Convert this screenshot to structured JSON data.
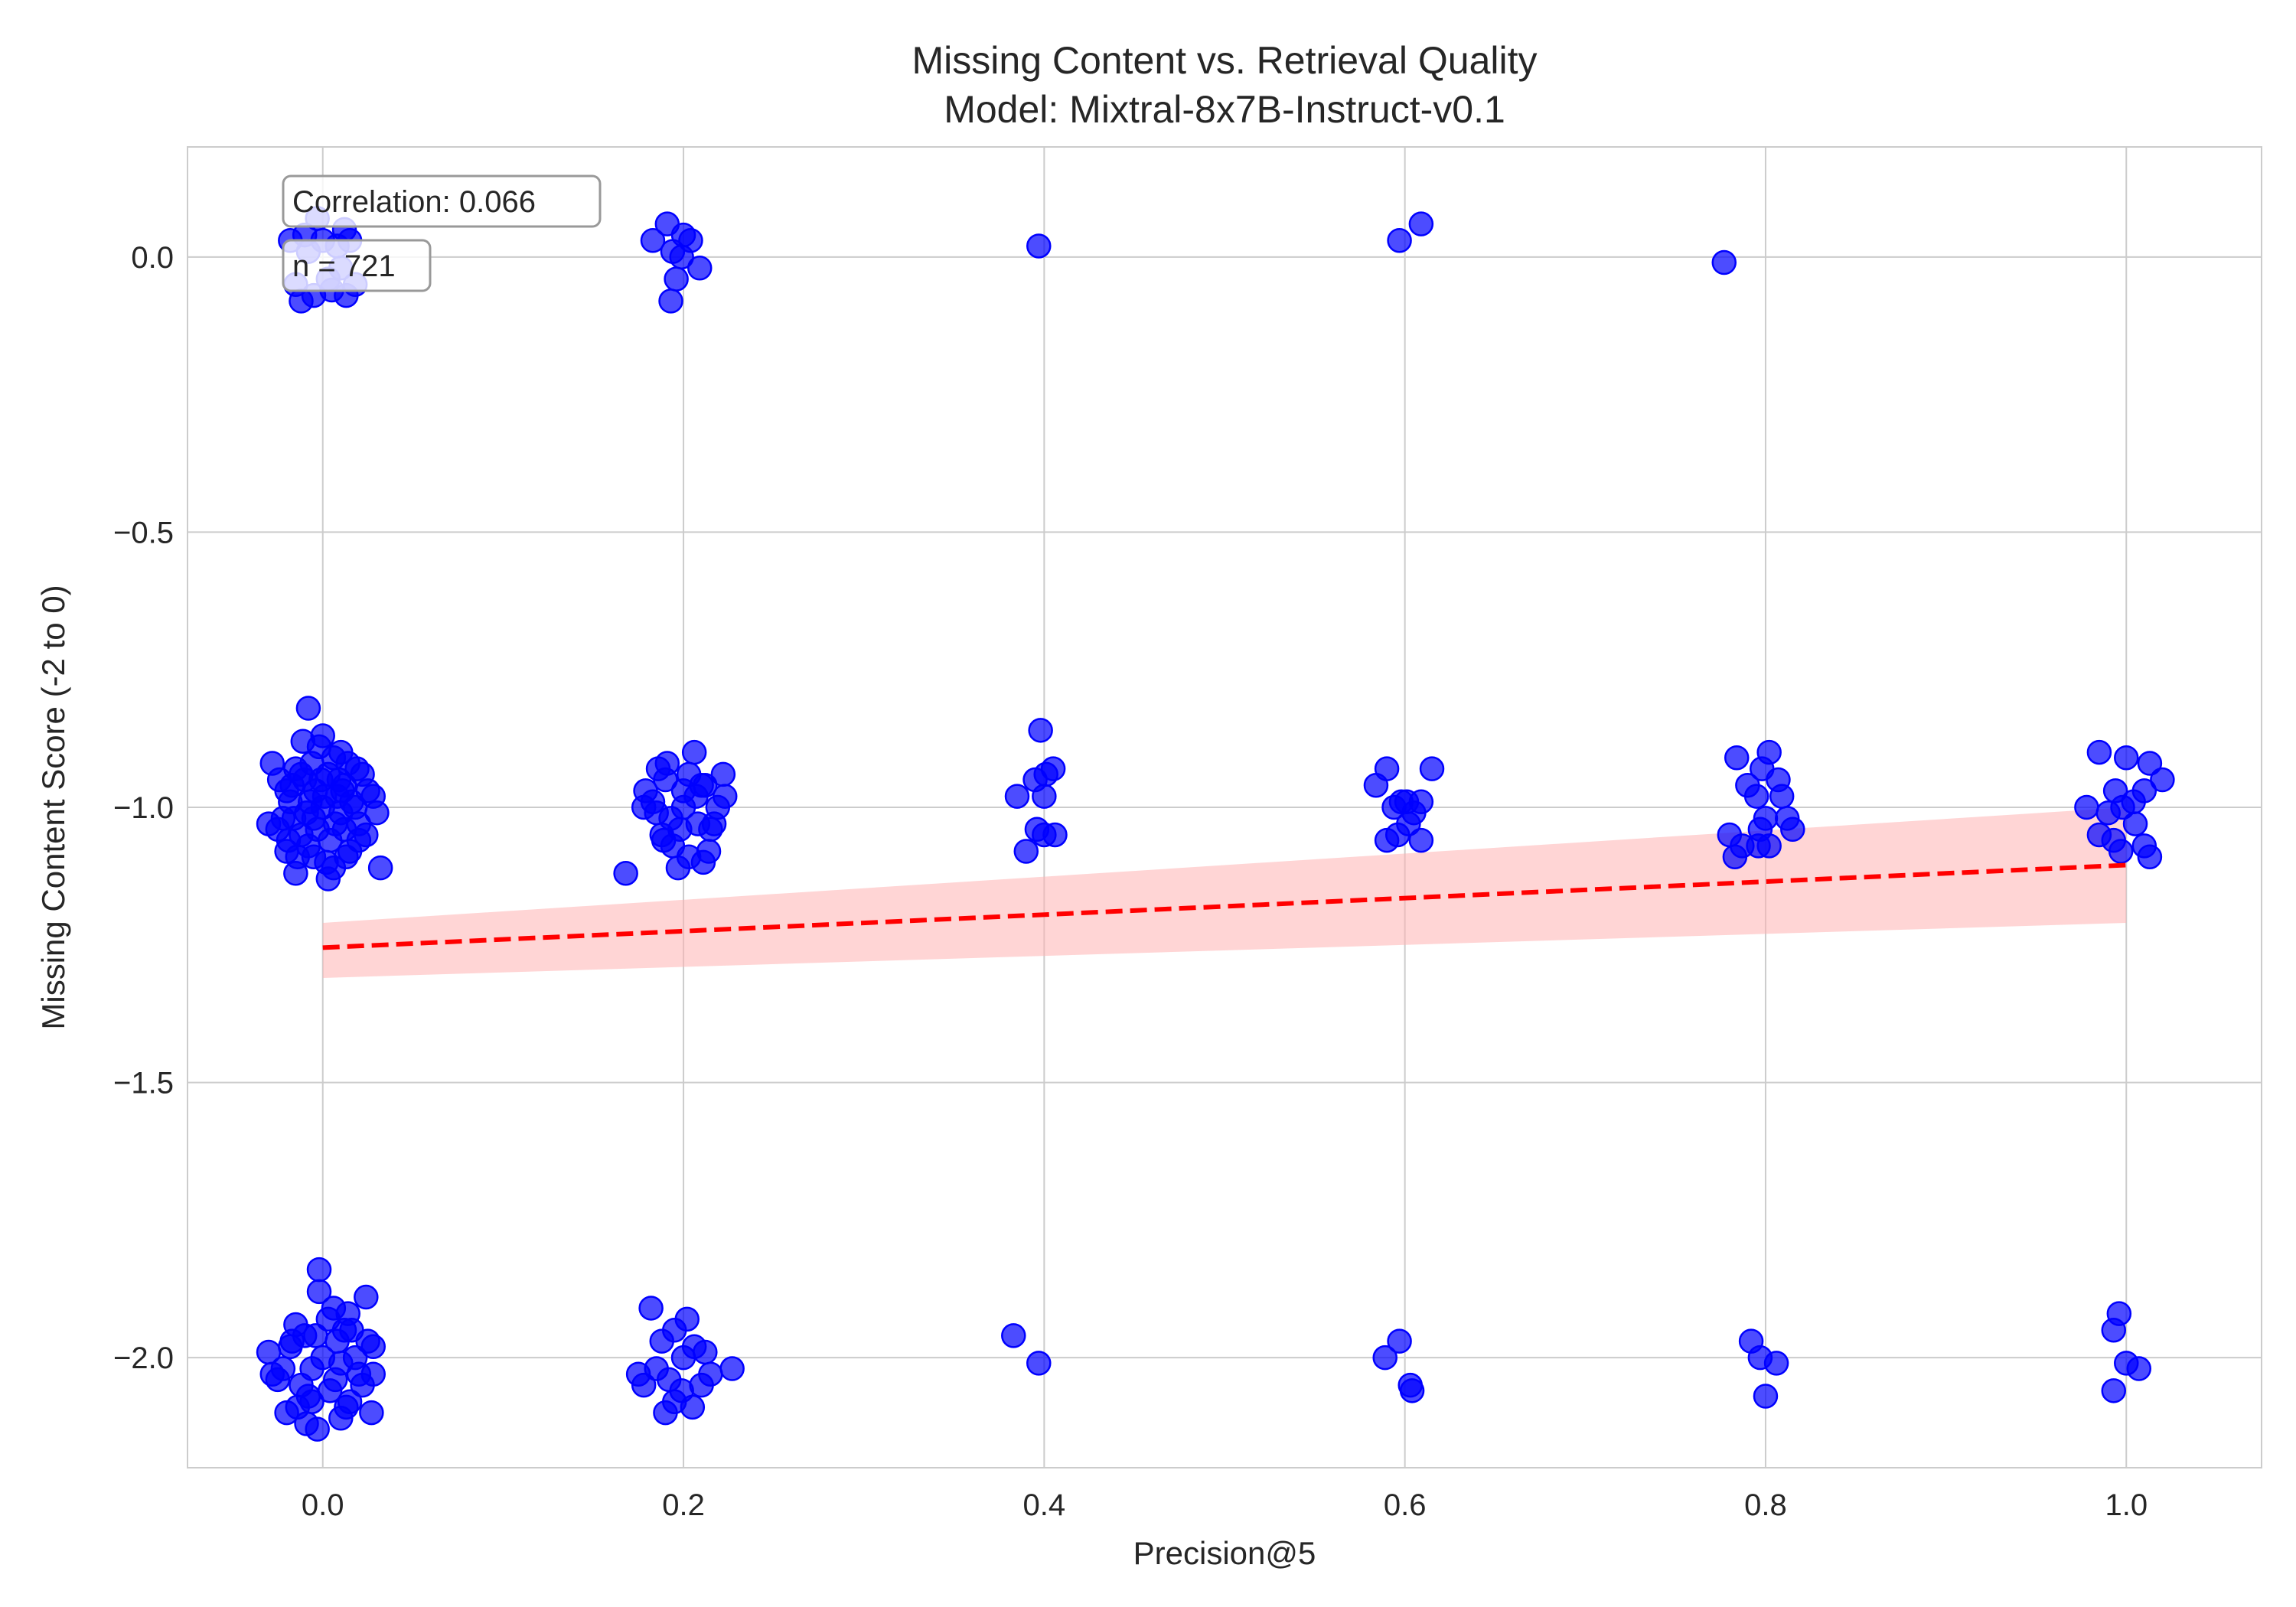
{
  "chart_data": {
    "type": "scatter",
    "title": "Missing Content vs. Retrieval Quality",
    "subtitle": "Model: Mixtral-8x7B-Instruct-v0.1",
    "xlabel": "Precision@5",
    "ylabel": "Missing Content Score (-2 to 0)",
    "xlim": [
      -0.075,
      1.075
    ],
    "ylim": [
      -2.2,
      0.2
    ],
    "xticks": [
      0.0,
      0.2,
      0.4,
      0.6,
      0.8,
      1.0
    ],
    "xtick_labels": [
      "0.0",
      "0.2",
      "0.4",
      "0.6",
      "0.8",
      "1.0"
    ],
    "yticks": [
      0.0,
      -0.5,
      -1.0,
      -1.5,
      -2.0
    ],
    "ytick_labels": [
      "0.0",
      "−0.5",
      "−1.0",
      "−1.5",
      "−2.0"
    ],
    "grid": true,
    "annotations": [
      {
        "text": "Correlation: 0.066"
      },
      {
        "text": "n = 721"
      }
    ],
    "colors": {
      "points": "#0000ff",
      "trend": "#ff0000",
      "band": "#ffb3b3",
      "grid": "#cccccc",
      "spine": "#cccccc",
      "text": "#262626"
    },
    "trend_line": {
      "x": [
        0.0,
        1.0
      ],
      "y": [
        -1.255,
        -1.105
      ],
      "style": "dashed"
    },
    "confidence_band": {
      "x": [
        0.0,
        1.0
      ],
      "lower": [
        -1.31,
        -1.21
      ],
      "upper": [
        -1.21,
        -1.0
      ]
    },
    "series": [
      {
        "points": [
          [
            0.0,
            -1.0
          ],
          [
            -0.005,
            -1.02
          ],
          [
            0.008,
            -0.98
          ],
          [
            -0.012,
            -1.05
          ],
          [
            0.012,
            -0.96
          ],
          [
            -0.018,
            -0.99
          ],
          [
            0.02,
            -1.03
          ],
          [
            0.003,
            -0.94
          ],
          [
            -0.008,
            -1.07
          ],
          [
            0.015,
            -1.08
          ],
          [
            -0.015,
            -0.93
          ],
          [
            0.006,
            -0.91
          ],
          [
            -0.002,
            -0.89
          ],
          [
            0.0,
            -0.87
          ],
          [
            -0.01,
            -0.95
          ],
          [
            0.018,
            -1.0
          ],
          [
            -0.022,
            -1.02
          ],
          [
            0.025,
            -0.97
          ],
          [
            -0.025,
            -1.04
          ],
          [
            0.01,
            -1.01
          ],
          [
            -0.004,
            -0.97
          ],
          [
            0.004,
            -1.06
          ],
          [
            -0.014,
            -1.09
          ],
          [
            0.014,
            -0.92
          ],
          [
            -0.017,
            -0.96
          ],
          [
            0.02,
            -1.06
          ],
          [
            -0.02,
            -0.97
          ],
          [
            0.022,
            -0.94
          ],
          [
            0.007,
            -1.03
          ],
          [
            -0.007,
            -0.99
          ],
          [
            0.012,
            -1.04
          ],
          [
            -0.012,
            -0.94
          ],
          [
            0.002,
            -1.1
          ],
          [
            -0.006,
            -0.92
          ],
          [
            0.009,
            -0.95
          ],
          [
            -0.003,
            -1.04
          ],
          [
            0.016,
            -0.99
          ],
          [
            -0.016,
            -1.02
          ],
          [
            0.001,
            -0.98
          ],
          [
            -0.009,
            -1.01
          ],
          [
            -0.028,
            -0.92
          ],
          [
            -0.03,
            -1.03
          ],
          [
            0.03,
            -1.01
          ],
          [
            0.032,
            -1.11
          ],
          [
            -0.008,
            -0.82
          ],
          [
            0.003,
            -1.13
          ],
          [
            -0.015,
            -1.12
          ],
          [
            0.01,
            -0.9
          ],
          [
            -0.02,
            -1.08
          ],
          [
            0.024,
            -1.05
          ],
          [
            0.006,
            -1.11
          ],
          [
            -0.011,
            -0.88
          ],
          [
            0.013,
            -1.09
          ],
          [
            -0.024,
            -0.95
          ],
          [
            0.028,
            -0.98
          ],
          [
            -0.005,
            -1.09
          ],
          [
            0.019,
            -0.93
          ],
          [
            -0.019,
            -1.06
          ],
          [
            0.011,
            -0.97
          ],
          [
            -0.001,
            -0.95
          ],
          [
            0.0,
            -2.0
          ],
          [
            -0.006,
            -2.02
          ],
          [
            0.008,
            -1.97
          ],
          [
            -0.012,
            -2.05
          ],
          [
            0.012,
            -1.95
          ],
          [
            -0.018,
            -1.98
          ],
          [
            0.02,
            -2.03
          ],
          [
            0.003,
            -1.93
          ],
          [
            -0.008,
            -2.07
          ],
          [
            0.015,
            -2.08
          ],
          [
            -0.015,
            -1.94
          ],
          [
            0.006,
            -1.91
          ],
          [
            -0.002,
            -1.88
          ],
          [
            -0.002,
            -1.84
          ],
          [
            -0.01,
            -1.96
          ],
          [
            0.018,
            -2.0
          ],
          [
            -0.022,
            -2.02
          ],
          [
            0.025,
            -1.97
          ],
          [
            -0.025,
            -2.04
          ],
          [
            0.01,
            -2.01
          ],
          [
            -0.004,
            -1.96
          ],
          [
            0.004,
            -2.06
          ],
          [
            -0.014,
            -2.09
          ],
          [
            0.014,
            -1.92
          ],
          [
            -0.02,
            -2.1
          ],
          [
            0.022,
            -2.05
          ],
          [
            -0.003,
            -2.13
          ],
          [
            0.01,
            -2.11
          ],
          [
            -0.03,
            -1.99
          ],
          [
            -0.028,
            -2.03
          ],
          [
            0.028,
            -1.98
          ],
          [
            0.027,
            -2.1
          ],
          [
            0.024,
            -1.89
          ],
          [
            0.028,
            -2.03
          ],
          [
            -0.009,
            -2.12
          ],
          [
            0.013,
            -2.09
          ],
          [
            -0.017,
            -1.97
          ],
          [
            0.007,
            -2.04
          ],
          [
            -0.006,
            -2.08
          ],
          [
            0.016,
            -1.95
          ],
          [
            -0.018,
            0.03
          ],
          [
            -0.01,
            0.04
          ],
          [
            0.0,
            0.03
          ],
          [
            0.008,
            0.02
          ],
          [
            0.015,
            0.03
          ],
          [
            -0.015,
            -0.05
          ],
          [
            -0.012,
            -0.08
          ],
          [
            -0.005,
            -0.07
          ],
          [
            0.005,
            -0.06
          ],
          [
            0.01,
            -0.02
          ],
          [
            -0.008,
            0.01
          ],
          [
            0.003,
            -0.04
          ],
          [
            0.013,
            -0.07
          ],
          [
            0.018,
            -0.05
          ],
          [
            0.012,
            0.05
          ],
          [
            -0.003,
            0.07
          ],
          [
            0.183,
            0.03
          ],
          [
            0.191,
            0.06
          ],
          [
            0.194,
            0.01
          ],
          [
            0.2,
            0.04
          ],
          [
            0.204,
            0.03
          ],
          [
            0.199,
            0.0
          ],
          [
            0.209,
            -0.02
          ],
          [
            0.196,
            -0.04
          ],
          [
            0.193,
            -0.08
          ],
          [
            0.2,
            -1.0
          ],
          [
            0.193,
            -1.02
          ],
          [
            0.207,
            -0.98
          ],
          [
            0.188,
            -1.05
          ],
          [
            0.212,
            -0.96
          ],
          [
            0.183,
            -0.99
          ],
          [
            0.217,
            -1.03
          ],
          [
            0.203,
            -0.94
          ],
          [
            0.194,
            -1.07
          ],
          [
            0.214,
            -1.08
          ],
          [
            0.186,
            -0.93
          ],
          [
            0.206,
            -0.9
          ],
          [
            0.191,
            -0.92
          ],
          [
            0.219,
            -1.0
          ],
          [
            0.179,
            -0.97
          ],
          [
            0.222,
            -0.94
          ],
          [
            0.178,
            -1.0
          ],
          [
            0.223,
            -0.98
          ],
          [
            0.197,
            -1.11
          ],
          [
            0.203,
            -1.09
          ],
          [
            0.211,
            -1.1
          ],
          [
            0.168,
            -1.12
          ],
          [
            0.19,
            -0.95
          ],
          [
            0.198,
            -1.04
          ],
          [
            0.208,
            -1.03
          ],
          [
            0.185,
            -1.01
          ],
          [
            0.215,
            -1.04
          ],
          [
            0.2,
            -0.97
          ],
          [
            0.189,
            -1.06
          ],
          [
            0.21,
            -0.96
          ],
          [
            0.2,
            -2.0
          ],
          [
            0.185,
            -2.02
          ],
          [
            0.188,
            -1.97
          ],
          [
            0.182,
            -1.91
          ],
          [
            0.195,
            -1.95
          ],
          [
            0.202,
            -1.93
          ],
          [
            0.206,
            -1.98
          ],
          [
            0.212,
            -1.99
          ],
          [
            0.175,
            -2.03
          ],
          [
            0.178,
            -2.05
          ],
          [
            0.19,
            -2.1
          ],
          [
            0.195,
            -2.08
          ],
          [
            0.205,
            -2.09
          ],
          [
            0.21,
            -2.05
          ],
          [
            0.215,
            -2.03
          ],
          [
            0.199,
            -2.06
          ],
          [
            0.227,
            -2.02
          ],
          [
            0.192,
            -2.04
          ],
          [
            0.398,
            -0.86
          ],
          [
            0.395,
            -0.95
          ],
          [
            0.401,
            -0.94
          ],
          [
            0.405,
            -0.93
          ],
          [
            0.385,
            -0.98
          ],
          [
            0.4,
            -0.98
          ],
          [
            0.396,
            -1.04
          ],
          [
            0.39,
            -1.08
          ],
          [
            0.4,
            -1.05
          ],
          [
            0.406,
            -1.05
          ],
          [
            0.383,
            -1.96
          ],
          [
            0.397,
            -2.01
          ],
          [
            0.397,
            0.02
          ],
          [
            0.597,
            0.03
          ],
          [
            0.609,
            0.06
          ],
          [
            0.584,
            -0.96
          ],
          [
            0.59,
            -0.93
          ],
          [
            0.594,
            -1.0
          ],
          [
            0.598,
            -0.99
          ],
          [
            0.601,
            -0.99
          ],
          [
            0.605,
            -1.01
          ],
          [
            0.609,
            -0.99
          ],
          [
            0.615,
            -0.93
          ],
          [
            0.59,
            -1.06
          ],
          [
            0.596,
            -1.05
          ],
          [
            0.602,
            -1.03
          ],
          [
            0.609,
            -1.06
          ],
          [
            0.589,
            -2.0
          ],
          [
            0.597,
            -1.97
          ],
          [
            0.603,
            -2.05
          ],
          [
            0.604,
            -2.06
          ],
          [
            0.777,
            -0.01
          ],
          [
            0.784,
            -0.91
          ],
          [
            0.798,
            -0.93
          ],
          [
            0.802,
            -0.9
          ],
          [
            0.807,
            -0.95
          ],
          [
            0.79,
            -0.96
          ],
          [
            0.795,
            -0.98
          ],
          [
            0.809,
            -0.98
          ],
          [
            0.8,
            -1.02
          ],
          [
            0.812,
            -1.02
          ],
          [
            0.78,
            -1.05
          ],
          [
            0.787,
            -1.07
          ],
          [
            0.796,
            -1.07
          ],
          [
            0.802,
            -1.07
          ],
          [
            0.815,
            -1.04
          ],
          [
            0.783,
            -1.09
          ],
          [
            0.797,
            -1.04
          ],
          [
            0.792,
            -1.97
          ],
          [
            0.797,
            -2.0
          ],
          [
            0.806,
            -2.01
          ],
          [
            0.8,
            -2.07
          ],
          [
            0.985,
            -0.9
          ],
          [
            0.994,
            -0.97
          ],
          [
            1.0,
            -0.91
          ],
          [
            1.013,
            -0.92
          ],
          [
            1.02,
            -0.95
          ],
          [
            0.978,
            -1.0
          ],
          [
            0.99,
            -1.01
          ],
          [
            0.998,
            -1.0
          ],
          [
            1.004,
            -0.99
          ],
          [
            1.01,
            -0.97
          ],
          [
            1.005,
            -1.03
          ],
          [
            0.985,
            -1.05
          ],
          [
            0.993,
            -1.06
          ],
          [
            0.997,
            -1.08
          ],
          [
            1.01,
            -1.07
          ],
          [
            1.013,
            -1.09
          ],
          [
            0.996,
            -1.92
          ],
          [
            0.993,
            -1.95
          ],
          [
            1.0,
            -2.01
          ],
          [
            1.007,
            -2.02
          ],
          [
            0.993,
            -2.06
          ]
        ]
      }
    ]
  }
}
